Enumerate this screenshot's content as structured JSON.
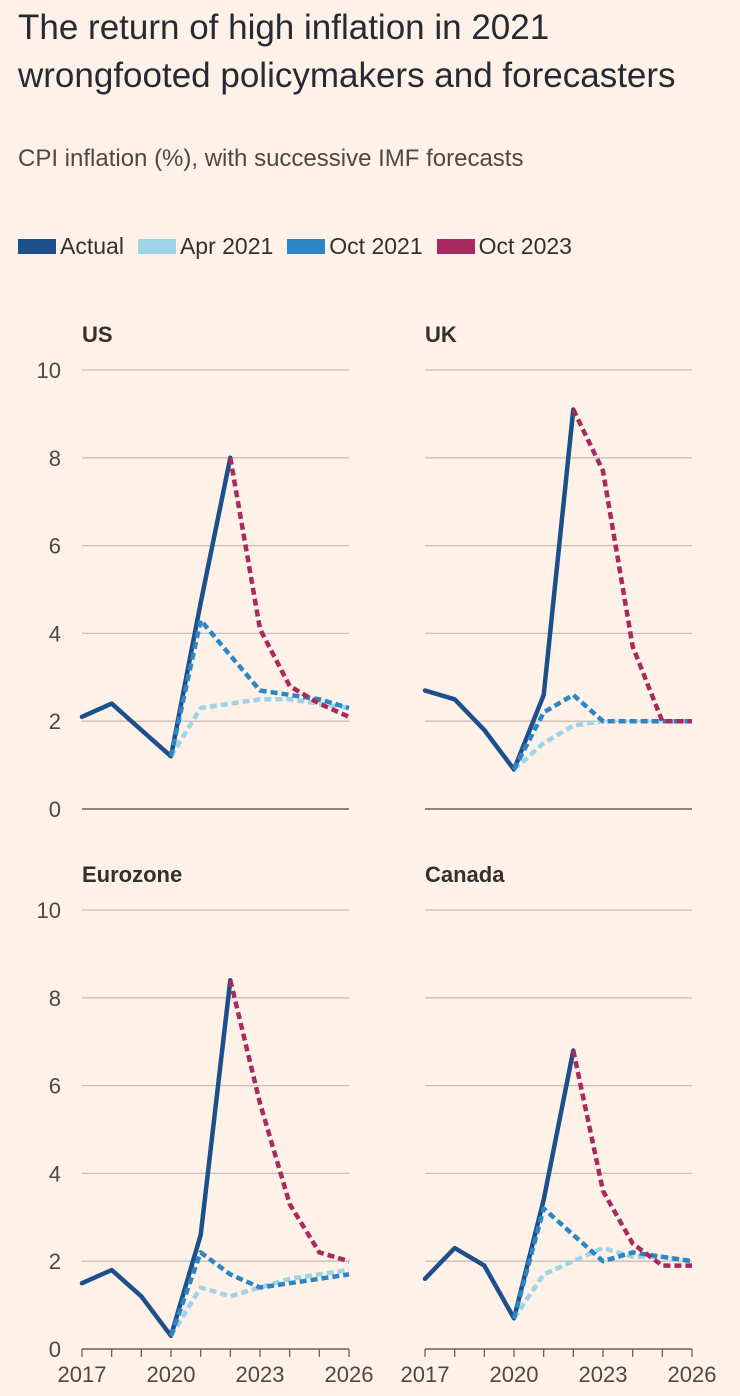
{
  "title": "The return of high inflation in 2021 wrongfooted policymakers and forecasters",
  "subtitle": "CPI inflation (%), with successive IMF forecasts",
  "legend": [
    {
      "label": "Actual",
      "color": "#1d4f8c"
    },
    {
      "label": "Apr 2021",
      "color": "#9fd3e6"
    },
    {
      "label": "Oct 2021",
      "color": "#2a86c5"
    },
    {
      "label": "Oct 2023",
      "color": "#a82a5e"
    }
  ],
  "chart_data": [
    {
      "type": "line",
      "title": "US",
      "ylim": [
        0,
        10
      ],
      "yticks": [
        0,
        2,
        4,
        6,
        8,
        10
      ],
      "xlim": [
        2017,
        2026
      ],
      "xticks": [
        2017,
        2020,
        2023,
        2026
      ],
      "series": [
        {
          "name": "Actual",
          "x": [
            2017,
            2018,
            2019,
            2020,
            2021,
            2022
          ],
          "values": [
            2.1,
            2.4,
            1.8,
            1.2,
            4.7,
            8.0
          ]
        },
        {
          "name": "Apr 2021",
          "x": [
            2020,
            2021,
            2022,
            2023,
            2024,
            2025,
            2026
          ],
          "values": [
            1.2,
            2.3,
            2.4,
            2.5,
            2.5,
            2.4,
            2.3
          ]
        },
        {
          "name": "Oct 2021",
          "x": [
            2020,
            2021,
            2022,
            2023,
            2024,
            2025,
            2026
          ],
          "values": [
            1.2,
            4.3,
            3.5,
            2.7,
            2.6,
            2.5,
            2.3
          ]
        },
        {
          "name": "Oct 2023",
          "x": [
            2022,
            2023,
            2024,
            2025,
            2026
          ],
          "values": [
            8.0,
            4.1,
            2.8,
            2.4,
            2.1
          ]
        }
      ]
    },
    {
      "type": "line",
      "title": "UK",
      "ylim": [
        0,
        10
      ],
      "yticks": [
        0,
        2,
        4,
        6,
        8,
        10
      ],
      "xlim": [
        2017,
        2026
      ],
      "xticks": [
        2017,
        2020,
        2023,
        2026
      ],
      "series": [
        {
          "name": "Actual",
          "x": [
            2017,
            2018,
            2019,
            2020,
            2021,
            2022
          ],
          "values": [
            2.7,
            2.5,
            1.8,
            0.9,
            2.6,
            9.1
          ]
        },
        {
          "name": "Apr 2021",
          "x": [
            2020,
            2021,
            2022,
            2023,
            2024,
            2025,
            2026
          ],
          "values": [
            0.9,
            1.5,
            1.9,
            2.0,
            2.0,
            2.0,
            2.0
          ]
        },
        {
          "name": "Oct 2021",
          "x": [
            2020,
            2021,
            2022,
            2023,
            2024,
            2025,
            2026
          ],
          "values": [
            0.9,
            2.2,
            2.6,
            2.0,
            2.0,
            2.0,
            2.0
          ]
        },
        {
          "name": "Oct 2023",
          "x": [
            2022,
            2023,
            2024,
            2025,
            2026
          ],
          "values": [
            9.1,
            7.7,
            3.7,
            2.0,
            2.0
          ]
        }
      ]
    },
    {
      "type": "line",
      "title": "Eurozone",
      "ylim": [
        0,
        10
      ],
      "yticks": [
        0,
        2,
        4,
        6,
        8,
        10
      ],
      "xlim": [
        2017,
        2026
      ],
      "xticks": [
        2017,
        2020,
        2023,
        2026
      ],
      "series": [
        {
          "name": "Actual",
          "x": [
            2017,
            2018,
            2019,
            2020,
            2021,
            2022
          ],
          "values": [
            1.5,
            1.8,
            1.2,
            0.3,
            2.6,
            8.4
          ]
        },
        {
          "name": "Apr 2021",
          "x": [
            2020,
            2021,
            2022,
            2023,
            2024,
            2025,
            2026
          ],
          "values": [
            0.3,
            1.4,
            1.2,
            1.4,
            1.6,
            1.7,
            1.8
          ]
        },
        {
          "name": "Oct 2021",
          "x": [
            2020,
            2021,
            2022,
            2023,
            2024,
            2025,
            2026
          ],
          "values": [
            0.3,
            2.2,
            1.7,
            1.4,
            1.5,
            1.6,
            1.7
          ]
        },
        {
          "name": "Oct 2023",
          "x": [
            2022,
            2023,
            2024,
            2025,
            2026
          ],
          "values": [
            8.4,
            5.6,
            3.3,
            2.2,
            2.0
          ]
        }
      ]
    },
    {
      "type": "line",
      "title": "Canada",
      "ylim": [
        0,
        10
      ],
      "yticks": [
        0,
        2,
        4,
        6,
        8,
        10
      ],
      "xlim": [
        2017,
        2026
      ],
      "xticks": [
        2017,
        2020,
        2023,
        2026
      ],
      "series": [
        {
          "name": "Actual",
          "x": [
            2017,
            2018,
            2019,
            2020,
            2021,
            2022
          ],
          "values": [
            1.6,
            2.3,
            1.9,
            0.7,
            3.4,
            6.8
          ]
        },
        {
          "name": "Apr 2021",
          "x": [
            2020,
            2021,
            2022,
            2023,
            2024,
            2025,
            2026
          ],
          "values": [
            0.7,
            1.7,
            2.0,
            2.3,
            2.1,
            2.1,
            2.0
          ]
        },
        {
          "name": "Oct 2021",
          "x": [
            2020,
            2021,
            2022,
            2023,
            2024,
            2025,
            2026
          ],
          "values": [
            0.7,
            3.2,
            2.6,
            2.0,
            2.2,
            2.1,
            2.0
          ]
        },
        {
          "name": "Oct 2023",
          "x": [
            2022,
            2023,
            2024,
            2025,
            2026
          ],
          "values": [
            6.8,
            3.6,
            2.4,
            1.9,
            1.9
          ]
        }
      ]
    }
  ]
}
